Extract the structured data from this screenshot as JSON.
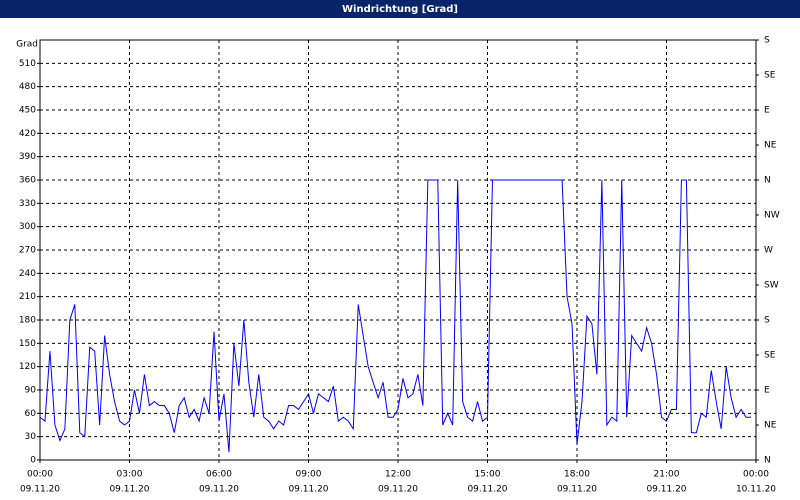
{
  "chart_data": {
    "type": "line",
    "title": "Windrichtung [Grad]",
    "ylabel": "Grad",
    "x": [
      0,
      10,
      20,
      30,
      40,
      50,
      60,
      70,
      80,
      90,
      100,
      110,
      120,
      130,
      140,
      150,
      160,
      170,
      180,
      190,
      200,
      210,
      220,
      230,
      240,
      250,
      260,
      270,
      280,
      290,
      300,
      310,
      320,
      330,
      340,
      350,
      360,
      370,
      380,
      390,
      400,
      410,
      420,
      430,
      440,
      450,
      460,
      470,
      480,
      490,
      500,
      510,
      520,
      530,
      540,
      550,
      560,
      570,
      580,
      590,
      600,
      610,
      620,
      630,
      640,
      650,
      660,
      670,
      680,
      690,
      700,
      710,
      720,
      730,
      740,
      750,
      760,
      770,
      780,
      790,
      800,
      810,
      820,
      830,
      840,
      850,
      860,
      870,
      880,
      890,
      900,
      910,
      920,
      930,
      940,
      950,
      960,
      970,
      980,
      990,
      1000,
      1010,
      1020,
      1030,
      1040,
      1050,
      1060,
      1070,
      1080,
      1090,
      1100,
      1110,
      1120,
      1130,
      1140,
      1150,
      1160,
      1170,
      1180,
      1190,
      1200,
      1210,
      1220,
      1230,
      1240,
      1250,
      1260,
      1270,
      1280,
      1290,
      1300,
      1310,
      1320,
      1330,
      1340,
      1350,
      1360,
      1370,
      1380,
      1390,
      1400,
      1410,
      1420,
      1430
    ],
    "series": [
      {
        "color": "#0000ff",
        "values": [
          55,
          50,
          140,
          45,
          25,
          40,
          180,
          200,
          35,
          30,
          145,
          140,
          45,
          160,
          110,
          75,
          50,
          45,
          50,
          90,
          60,
          110,
          70,
          75,
          70,
          70,
          60,
          35,
          70,
          80,
          55,
          65,
          50,
          80,
          60,
          165,
          50,
          85,
          10,
          150,
          95,
          180,
          100,
          55,
          110,
          55,
          50,
          40,
          50,
          45,
          70,
          70,
          65,
          75,
          85,
          60,
          85,
          80,
          75,
          95,
          50,
          55,
          50,
          40,
          200,
          160,
          120,
          100,
          80,
          100,
          55,
          55,
          65,
          105,
          80,
          85,
          110,
          70,
          360,
          360,
          360,
          45,
          60,
          45,
          360,
          75,
          55,
          50,
          75,
          50,
          55,
          360,
          360,
          360,
          360,
          360,
          360,
          360,
          360,
          360,
          360,
          360,
          360,
          360,
          360,
          360,
          210,
          175,
          20,
          75,
          185,
          175,
          110,
          360,
          45,
          55,
          50,
          360,
          55,
          160,
          150,
          140,
          170,
          150,
          110,
          55,
          50,
          65,
          65,
          360,
          360,
          35,
          35,
          60,
          55,
          115,
          75,
          40,
          120,
          80,
          55,
          65,
          55,
          55
        ]
      }
    ],
    "xlim": [
      0,
      1440
    ],
    "xticks": [
      {
        "value": 0,
        "label": "00:00",
        "date": "09.11.20"
      },
      {
        "value": 180,
        "label": "03:00",
        "date": "09.11.20"
      },
      {
        "value": 360,
        "label": "06:00",
        "date": "09.11.20"
      },
      {
        "value": 540,
        "label": "09:00",
        "date": "09.11.20"
      },
      {
        "value": 720,
        "label": "12:00",
        "date": "09.11.20"
      },
      {
        "value": 900,
        "label": "15:00",
        "date": "09.11.20"
      },
      {
        "value": 1080,
        "label": "18:00",
        "date": "09.11.20"
      },
      {
        "value": 1260,
        "label": "21:00",
        "date": "09.11.20"
      },
      {
        "value": 1440,
        "label": "00:00",
        "date": "10.11.20"
      }
    ],
    "ylim": [
      0,
      540
    ],
    "yticks": [
      0,
      30,
      60,
      90,
      120,
      150,
      180,
      210,
      240,
      270,
      300,
      330,
      360,
      390,
      420,
      450,
      480,
      510
    ],
    "y2lim": [
      0,
      540
    ],
    "y2ticks": [
      {
        "value": 0,
        "label": "N"
      },
      {
        "value": 45,
        "label": "NE"
      },
      {
        "value": 90,
        "label": "E"
      },
      {
        "value": 135,
        "label": "SE"
      },
      {
        "value": 180,
        "label": "S"
      },
      {
        "value": 225,
        "label": "SW"
      },
      {
        "value": 270,
        "label": "W"
      },
      {
        "value": 315,
        "label": "NW"
      },
      {
        "value": 360,
        "label": "N"
      },
      {
        "value": 405,
        "label": "NE"
      },
      {
        "value": 450,
        "label": "E"
      },
      {
        "value": 495,
        "label": "SE"
      },
      {
        "value": 540,
        "label": "S"
      }
    ],
    "grid": true
  }
}
